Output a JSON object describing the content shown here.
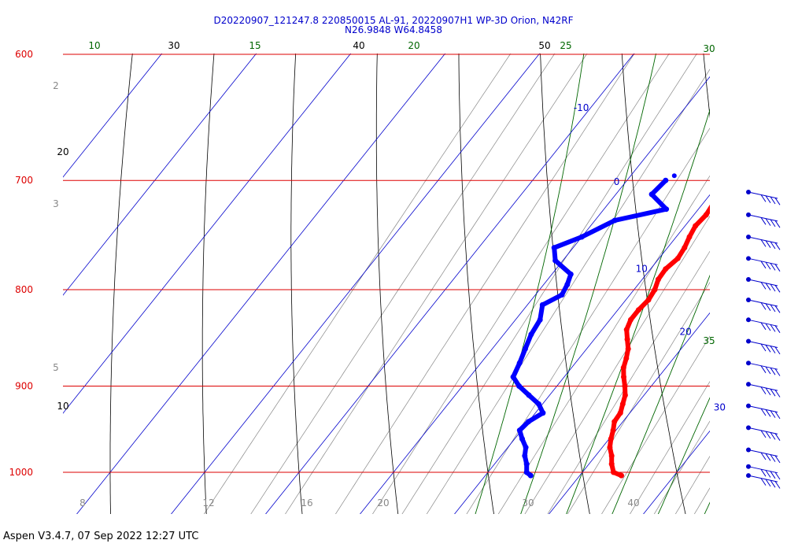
{
  "header": {
    "line1": "D20220907_121247.8 220850015 AL-91, 20220907H1 WP-3D Orion, N42RF",
    "line2": "N26.9848 W64.8458"
  },
  "footer": "Aspen V3.4.7, 07 Sep 2022  12:27 UTC",
  "colors": {
    "isobar": "#dd0000",
    "isotherm": "#0000cc",
    "moist_adiabat": "#006600",
    "dry_adiabat": "#000000",
    "mixing_ratio": "#888888",
    "temperature": "#ff0000",
    "dewpoint": "#0000ff",
    "wind_barb": "#0000cc"
  },
  "chart_data": {
    "type": "skew-t",
    "pressure_levels": [
      {
        "label": "600",
        "p": 600
      },
      {
        "label": "700",
        "p": 700
      },
      {
        "label": "800",
        "p": 800
      },
      {
        "label": "900",
        "p": 900
      },
      {
        "label": "1000",
        "p": 1000
      }
    ],
    "isotherm_labels": [
      {
        "text": "-10",
        "t": -10,
        "p": 645
      },
      {
        "text": "0",
        "t": 0,
        "p": 706
      },
      {
        "text": "10",
        "t": 10,
        "p": 785
      },
      {
        "text": "20",
        "t": 20,
        "p": 848
      },
      {
        "text": "30",
        "t": 30,
        "p": 930
      }
    ],
    "mixing_ratio_labels": [
      {
        "text": "2",
        "p": 630
      },
      {
        "text": "3",
        "p": 725
      },
      {
        "text": "5",
        "p": 882
      },
      {
        "text": "8",
        "p": 1030
      },
      {
        "text": "12",
        "p": 1030
      },
      {
        "text": "16",
        "p": 1030
      },
      {
        "text": "20",
        "p": 1030
      },
      {
        "text": "30",
        "p": 1030
      },
      {
        "text": "40",
        "p": 1030
      }
    ],
    "dry_adiabat_labels": [
      "10",
      "20",
      "30",
      "40",
      "50"
    ],
    "moist_adiabat_labels": [
      "10",
      "15",
      "20",
      "25",
      "30",
      "35"
    ],
    "temperature": [
      [
        700,
        12.7
      ],
      [
        705,
        11.9
      ],
      [
        712,
        11.4
      ],
      [
        720,
        11.1
      ],
      [
        730,
        11.3
      ],
      [
        740,
        11.1
      ],
      [
        750,
        11.4
      ],
      [
        760,
        11.8
      ],
      [
        770,
        12.0
      ],
      [
        780,
        11.6
      ],
      [
        790,
        11.7
      ],
      [
        800,
        12.2
      ],
      [
        810,
        12.4
      ],
      [
        820,
        12.2
      ],
      [
        830,
        12.2
      ],
      [
        840,
        12.6
      ],
      [
        850,
        13.5
      ],
      [
        860,
        14.4
      ],
      [
        870,
        15.0
      ],
      [
        880,
        15.5
      ],
      [
        890,
        16.3
      ],
      [
        900,
        17.2
      ],
      [
        910,
        18.0
      ],
      [
        920,
        18.5
      ],
      [
        930,
        19.0
      ],
      [
        940,
        19.1
      ],
      [
        950,
        19.7
      ],
      [
        960,
        20.2
      ],
      [
        970,
        20.8
      ],
      [
        980,
        21.7
      ],
      [
        990,
        22.4
      ],
      [
        1000,
        23.3
      ],
      [
        1004,
        24.4
      ]
    ],
    "dewpoint": [
      [
        700,
        4.1
      ],
      [
        712,
        3.8
      ],
      [
        725,
        6.6
      ],
      [
        735,
        2.1
      ],
      [
        750,
        0.0
      ],
      [
        760,
        -2.0
      ],
      [
        772,
        -0.8
      ],
      [
        785,
        2.0
      ],
      [
        795,
        2.5
      ],
      [
        805,
        2.8
      ],
      [
        815,
        1.6
      ],
      [
        830,
        2.6
      ],
      [
        845,
        2.9
      ],
      [
        860,
        3.5
      ],
      [
        875,
        4.1
      ],
      [
        890,
        4.6
      ],
      [
        900,
        6.0
      ],
      [
        910,
        7.8
      ],
      [
        920,
        9.6
      ],
      [
        930,
        10.8
      ],
      [
        940,
        10.0
      ],
      [
        950,
        9.8
      ],
      [
        960,
        10.8
      ],
      [
        970,
        11.9
      ],
      [
        980,
        12.5
      ],
      [
        990,
        13.4
      ],
      [
        1000,
        14.1
      ],
      [
        1004,
        14.8
      ]
    ],
    "wind_barbs": [
      {
        "p": 710
      },
      {
        "p": 730
      },
      {
        "p": 750
      },
      {
        "p": 770
      },
      {
        "p": 790
      },
      {
        "p": 810
      },
      {
        "p": 830
      },
      {
        "p": 852
      },
      {
        "p": 875
      },
      {
        "p": 898
      },
      {
        "p": 922
      },
      {
        "p": 947
      },
      {
        "p": 973
      },
      {
        "p": 993
      },
      {
        "p": 1004
      }
    ],
    "grid": true,
    "legend": "none"
  }
}
